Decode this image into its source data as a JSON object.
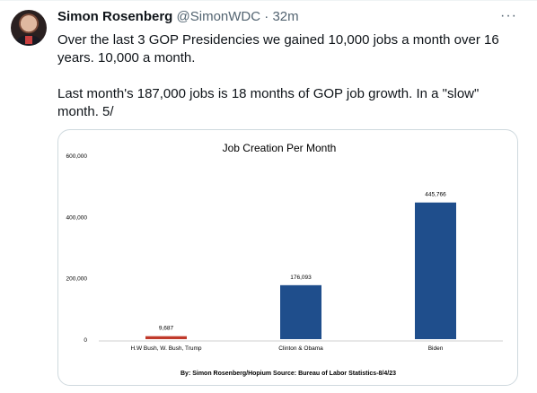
{
  "tweet": {
    "author_name": "Simon Rosenberg",
    "handle": "@SimonWDC",
    "separator": "·",
    "time": "32m",
    "more_icon": "ellipsis-icon",
    "avatar_icon": "avatar-photo",
    "text_lines": [
      "Over the last 3 GOP Presidencies we gained 10,000 jobs a month over 16 years.  10,000 a month.",
      "Last month's 187,000 jobs is 18 months of GOP job growth.  In a \"slow\" month.  5/"
    ]
  },
  "chart_data": {
    "type": "bar",
    "title": "Job Creation Per Month",
    "categories": [
      "H.W Bush, W. Bush, Trump",
      "Clinton & Obama",
      "Biden"
    ],
    "values": [
      9687,
      176093,
      445766
    ],
    "value_labels": [
      "9,687",
      "176,093",
      "445,766"
    ],
    "bar_colors": [
      "#c0392b",
      "#1f4e8c",
      "#1f4e8c"
    ],
    "ylim": [
      0,
      600000
    ],
    "yticks": [
      0,
      200000,
      400000,
      600000
    ],
    "ytick_labels": [
      "0",
      "200,000",
      "400,000",
      "600,000"
    ],
    "xlabel": "",
    "ylabel": "",
    "grid": false,
    "legend": "none",
    "source": "By: Simon Rosenberg/Hopium Source: Bureau of Labor Statistics-8/4/23"
  }
}
